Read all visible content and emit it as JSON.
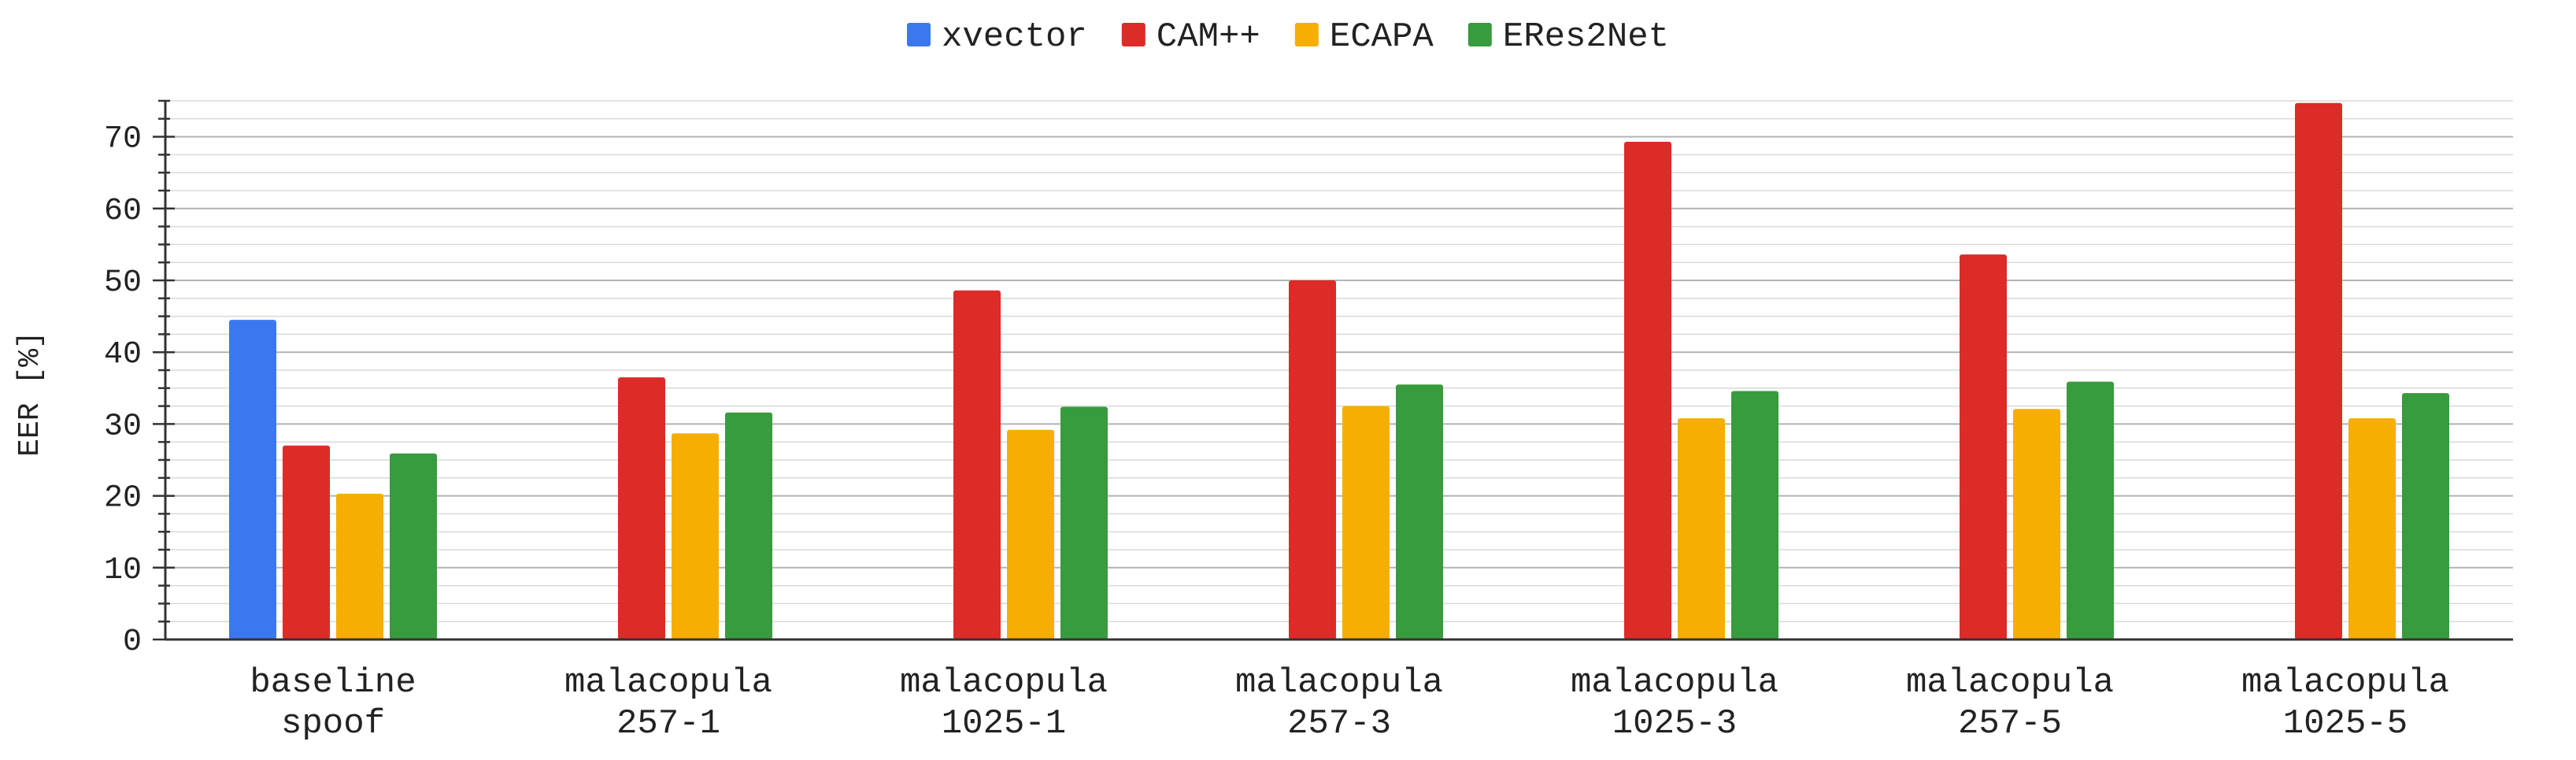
{
  "chart_data": {
    "type": "bar",
    "title": "",
    "xlabel": "",
    "ylabel": "EER [%]",
    "ylim": [
      0,
      75
    ],
    "yticks": [
      0,
      10,
      20,
      30,
      40,
      50,
      60,
      70
    ],
    "grid": true,
    "legend_position": "top-center",
    "categories": [
      [
        "baseline",
        "spoof"
      ],
      [
        "malacopula",
        "257-1"
      ],
      [
        "malacopula",
        "1025-1"
      ],
      [
        "malacopula",
        "257-3"
      ],
      [
        "malacopula",
        "1025-3"
      ],
      [
        "malacopula",
        "257-5"
      ],
      [
        "malacopula",
        "1025-5"
      ]
    ],
    "series": [
      {
        "name": "xvector",
        "color": "#3b78f0",
        "values": [
          44.5,
          null,
          null,
          null,
          null,
          null,
          null
        ]
      },
      {
        "name": "CAM++",
        "color": "#dd2b28",
        "values": [
          27.0,
          36.5,
          48.6,
          50.0,
          69.3,
          53.6,
          74.7
        ]
      },
      {
        "name": "ECAPA",
        "color": "#f6ae02",
        "values": [
          20.3,
          28.7,
          29.2,
          32.5,
          30.8,
          32.1,
          30.8
        ]
      },
      {
        "name": "ERes2Net",
        "color": "#389b3d",
        "values": [
          25.9,
          31.6,
          32.4,
          35.5,
          34.6,
          35.9,
          34.3
        ]
      }
    ]
  }
}
